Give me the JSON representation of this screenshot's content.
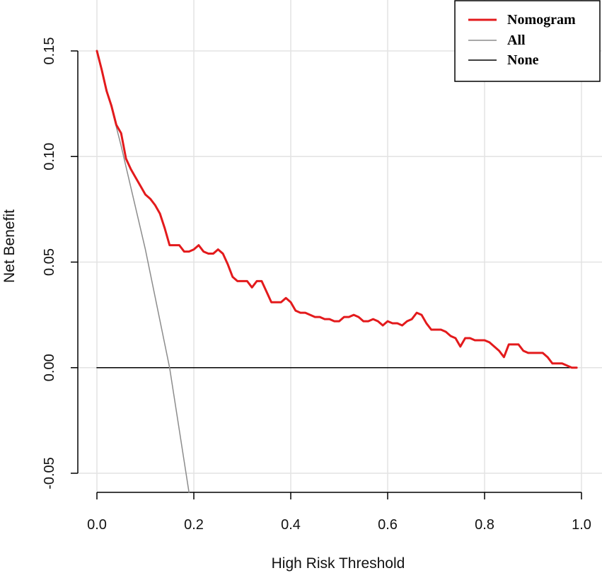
{
  "chart_data": {
    "type": "line",
    "title": "",
    "xlabel": "High Risk Threshold",
    "ylabel": "Net Benefit",
    "xlim": [
      0.0,
      1.0
    ],
    "ylim": [
      -0.05,
      0.15
    ],
    "x_ticks": [
      "0.0",
      "0.2",
      "0.4",
      "0.6",
      "0.8",
      "1.0"
    ],
    "y_ticks": [
      "-0.05",
      "0.00",
      "0.05",
      "0.10",
      "0.15"
    ],
    "grid": true,
    "legend_position": "top-right",
    "series": [
      {
        "name": "Nomogram",
        "color": "#e31a1c",
        "x": [
          0.0,
          0.01,
          0.02,
          0.03,
          0.04,
          0.05,
          0.06,
          0.07,
          0.08,
          0.09,
          0.1,
          0.11,
          0.12,
          0.13,
          0.14,
          0.15,
          0.16,
          0.17,
          0.18,
          0.19,
          0.2,
          0.21,
          0.22,
          0.23,
          0.24,
          0.25,
          0.26,
          0.27,
          0.28,
          0.29,
          0.3,
          0.31,
          0.32,
          0.33,
          0.34,
          0.35,
          0.36,
          0.37,
          0.38,
          0.39,
          0.4,
          0.41,
          0.42,
          0.43,
          0.44,
          0.45,
          0.46,
          0.47,
          0.48,
          0.49,
          0.5,
          0.51,
          0.52,
          0.53,
          0.54,
          0.55,
          0.56,
          0.57,
          0.58,
          0.59,
          0.6,
          0.61,
          0.62,
          0.63,
          0.64,
          0.65,
          0.66,
          0.67,
          0.68,
          0.69,
          0.7,
          0.71,
          0.72,
          0.73,
          0.74,
          0.75,
          0.76,
          0.77,
          0.78,
          0.79,
          0.8,
          0.81,
          0.82,
          0.83,
          0.84,
          0.85,
          0.86,
          0.87,
          0.88,
          0.89,
          0.9,
          0.91,
          0.92,
          0.93,
          0.94,
          0.95,
          0.96,
          0.97,
          0.98,
          0.99
        ],
        "values": [
          0.15,
          0.141,
          0.131,
          0.124,
          0.115,
          0.111,
          0.099,
          0.094,
          0.09,
          0.086,
          0.082,
          0.08,
          0.077,
          0.073,
          0.066,
          0.058,
          0.058,
          0.058,
          0.055,
          0.055,
          0.056,
          0.058,
          0.055,
          0.054,
          0.054,
          0.056,
          0.054,
          0.049,
          0.043,
          0.041,
          0.041,
          0.041,
          0.038,
          0.041,
          0.041,
          0.036,
          0.031,
          0.031,
          0.031,
          0.033,
          0.031,
          0.027,
          0.026,
          0.026,
          0.025,
          0.024,
          0.024,
          0.023,
          0.023,
          0.022,
          0.022,
          0.024,
          0.024,
          0.025,
          0.024,
          0.022,
          0.022,
          0.023,
          0.022,
          0.02,
          0.022,
          0.021,
          0.021,
          0.02,
          0.022,
          0.023,
          0.026,
          0.025,
          0.021,
          0.018,
          0.018,
          0.018,
          0.017,
          0.015,
          0.014,
          0.01,
          0.014,
          0.014,
          0.013,
          0.013,
          0.013,
          0.012,
          0.01,
          0.008,
          0.005,
          0.011,
          0.011,
          0.011,
          0.008,
          0.007,
          0.007,
          0.007,
          0.007,
          0.005,
          0.002,
          0.002,
          0.002,
          0.001,
          0.0,
          0.0
        ]
      },
      {
        "name": "All",
        "color": "#8c8c8c",
        "x": [
          0.0,
          0.05,
          0.1,
          0.15,
          0.19
        ],
        "values": [
          0.15,
          0.105,
          0.056,
          0.0,
          -0.059
        ]
      },
      {
        "name": "None",
        "color": "#000000",
        "x": [
          0.0,
          0.99
        ],
        "values": [
          0.0,
          0.0
        ]
      }
    ]
  }
}
